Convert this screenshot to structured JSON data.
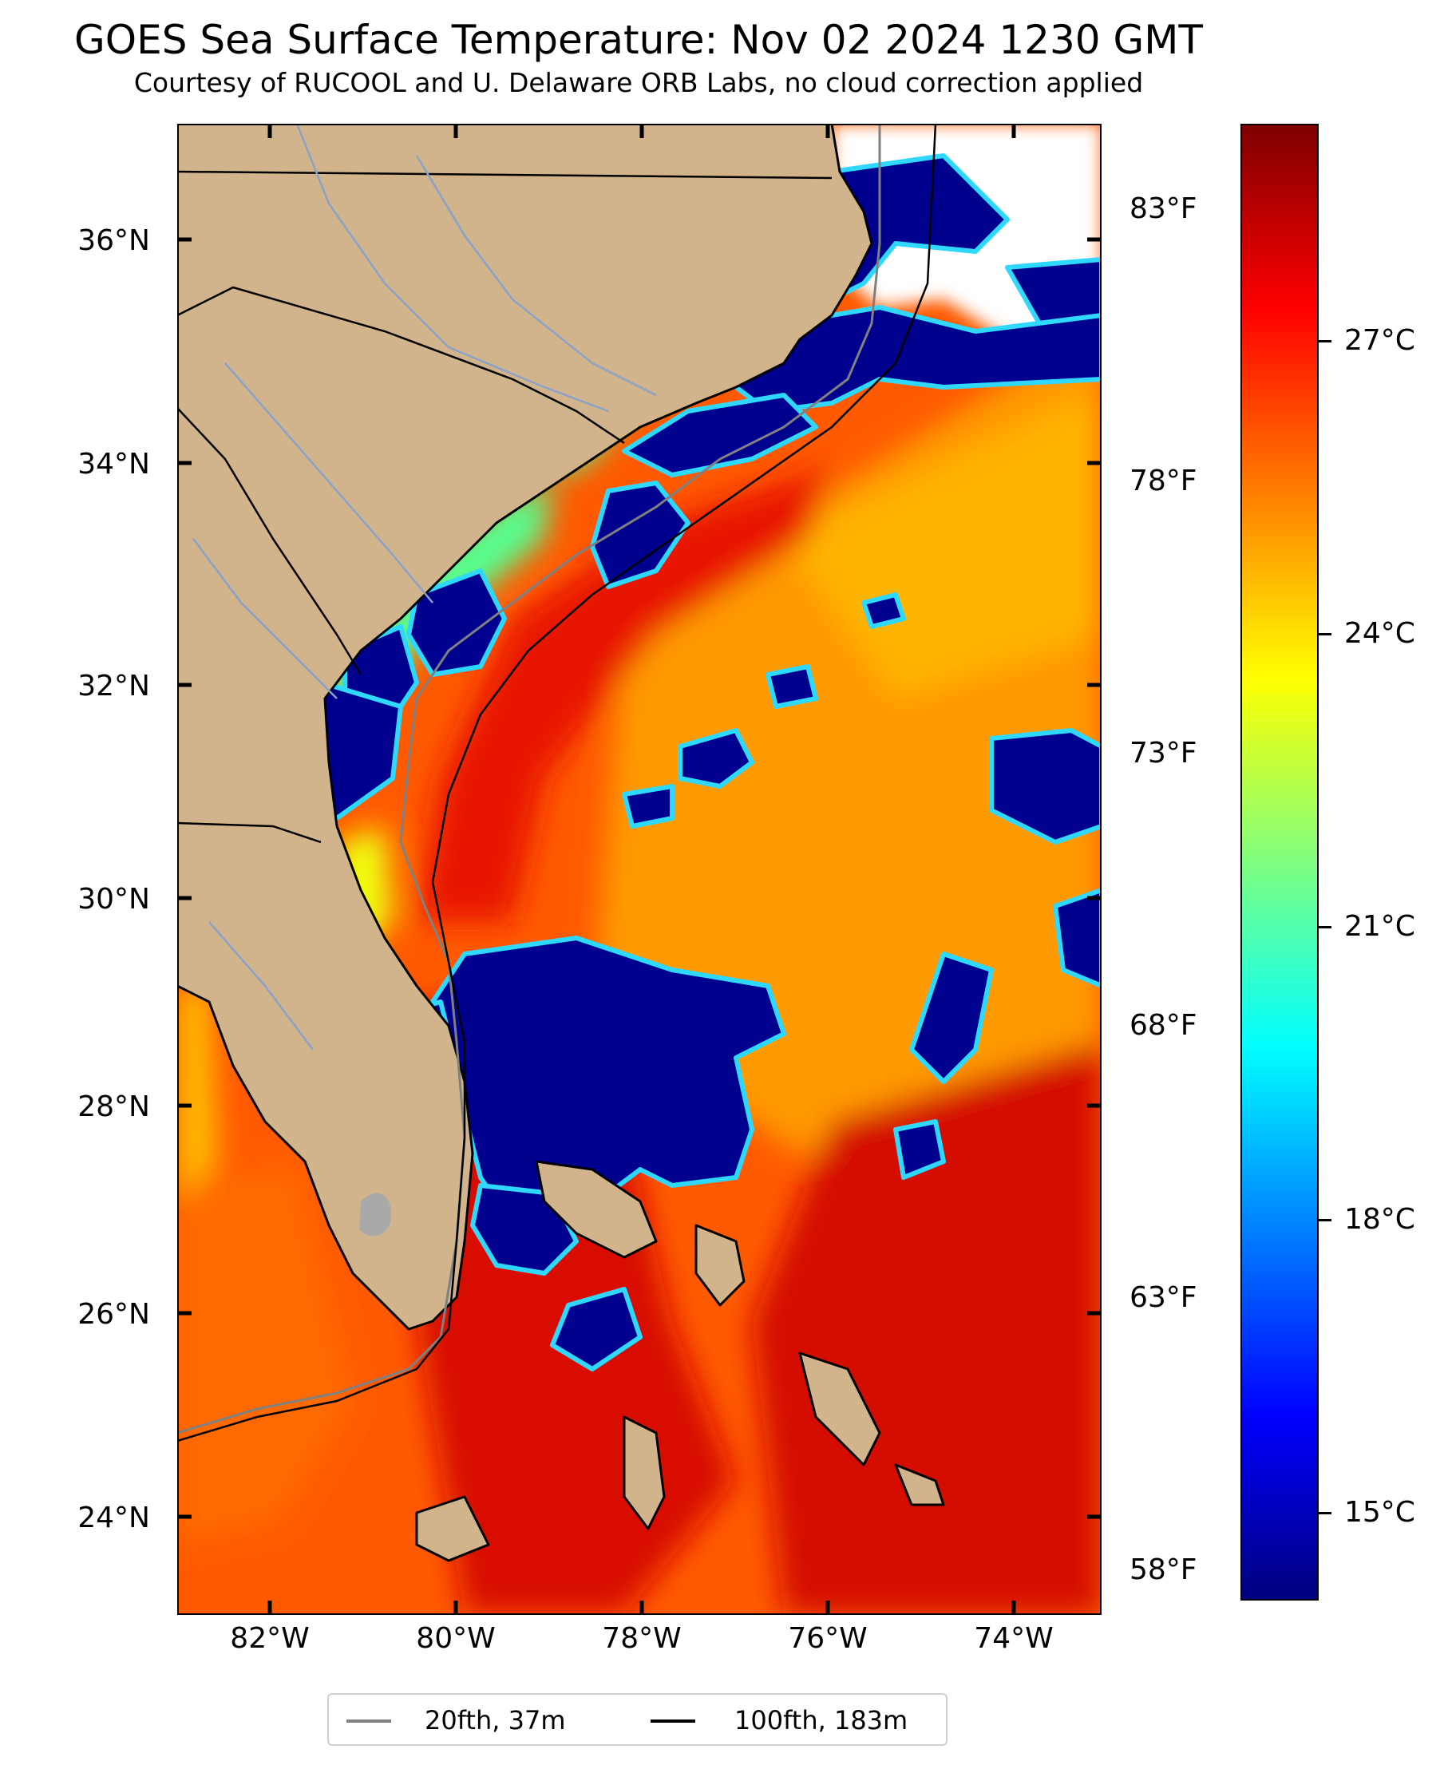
{
  "header": {
    "title": "GOES Sea Surface Temperature: Nov 02 2024 1230 GMT",
    "subtitle": "Courtesy of RUCOOL and U. Delaware ORB Labs, no cloud correction applied"
  },
  "map": {
    "lat_labels": [
      "36°N",
      "34°N",
      "32°N",
      "30°N",
      "28°N",
      "26°N",
      "24°N"
    ],
    "lon_labels": [
      "82°W",
      "80°W",
      "78°W",
      "76°W",
      "74°W"
    ],
    "extent": {
      "lon": [
        -83,
        -73
      ],
      "lat": [
        23.1,
        37.0
      ]
    },
    "colors": {
      "land": "#d2b48c",
      "no_data": "#ffffff",
      "coast": "#000000",
      "rivers": "#8aa2c8"
    }
  },
  "colorbar": {
    "fahrenheit_labels": [
      "83°F",
      "78°F",
      "73°F",
      "68°F",
      "63°F",
      "58°F"
    ],
    "celsius_labels": [
      "27°C",
      "24°C",
      "21°C",
      "18°C",
      "15°C"
    ],
    "colormap": "jet"
  },
  "legend": {
    "items": [
      {
        "label": "20fth, 37m",
        "color": "#808080"
      },
      {
        "label": "100fth, 183m",
        "color": "#000000"
      }
    ]
  }
}
